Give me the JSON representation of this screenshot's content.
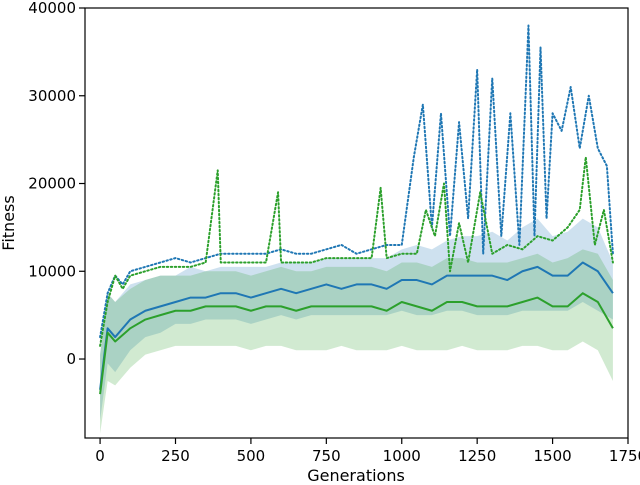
{
  "chart_data": {
    "type": "line",
    "title": "",
    "xlabel": "Generations",
    "ylabel": "Fitness",
    "xlim": [
      -50,
      1750
    ],
    "ylim": [
      -9000,
      40000
    ],
    "xticks": [
      0,
      250,
      500,
      750,
      1000,
      1250,
      1500,
      1750
    ],
    "yticks": [
      0,
      10000,
      20000,
      30000,
      40000
    ],
    "xtick_labels": [
      "0",
      "250",
      "500",
      "750",
      "1000",
      "1250",
      "1500",
      "1750"
    ],
    "ytick_labels": [
      "0",
      "10000",
      "20000",
      "30000",
      "40000"
    ],
    "grid": false,
    "legend": "none",
    "series": [
      {
        "color": "#1f77b4",
        "style": "solid-mean-with-band",
        "x": [
          0,
          25,
          50,
          100,
          150,
          200,
          250,
          300,
          350,
          400,
          450,
          500,
          550,
          600,
          650,
          700,
          750,
          800,
          850,
          900,
          950,
          1000,
          1050,
          1100,
          1150,
          1200,
          1250,
          1300,
          1350,
          1400,
          1450,
          1500,
          1550,
          1600,
          1650,
          1700
        ],
        "y": [
          -3500,
          3500,
          2500,
          4500,
          5500,
          6000,
          6500,
          7000,
          7000,
          7500,
          7500,
          7000,
          7500,
          8000,
          7500,
          8000,
          8500,
          8000,
          8500,
          8500,
          8000,
          9000,
          9000,
          8500,
          9500,
          9500,
          9500,
          9500,
          9000,
          10000,
          10500,
          9500,
          9500,
          11000,
          10000,
          7500
        ],
        "lower": [
          -7000,
          -500,
          -1500,
          1000,
          2500,
          3000,
          4000,
          4000,
          4500,
          4500,
          4500,
          4000,
          4500,
          5000,
          4500,
          5000,
          5000,
          5000,
          5000,
          5000,
          5000,
          5500,
          5000,
          5000,
          5500,
          5500,
          5000,
          5000,
          5000,
          5500,
          5500,
          5500,
          5500,
          6500,
          5500,
          4500
        ],
        "upper": [
          500,
          7500,
          6500,
          8500,
          9000,
          9500,
          9500,
          10500,
          10000,
          10500,
          10500,
          10500,
          10500,
          11000,
          11000,
          11000,
          11500,
          11500,
          11500,
          11500,
          11500,
          12500,
          13000,
          12500,
          13500,
          14000,
          14000,
          14500,
          13500,
          15000,
          16000,
          14000,
          14500,
          16000,
          15000,
          11000
        ]
      },
      {
        "color": "#1f77b4",
        "style": "dotted-max",
        "x": [
          0,
          25,
          50,
          75,
          100,
          150,
          200,
          250,
          300,
          350,
          400,
          450,
          500,
          550,
          600,
          650,
          700,
          750,
          800,
          850,
          900,
          950,
          1000,
          1040,
          1070,
          1100,
          1130,
          1160,
          1190,
          1220,
          1250,
          1270,
          1300,
          1330,
          1360,
          1390,
          1420,
          1440,
          1460,
          1480,
          1500,
          1530,
          1560,
          1590,
          1620,
          1650,
          1680,
          1700
        ],
        "y": [
          2500,
          7500,
          9500,
          8500,
          10000,
          10500,
          11000,
          11500,
          11000,
          11500,
          12000,
          12000,
          12000,
          12000,
          12500,
          12000,
          12000,
          12500,
          13000,
          12000,
          12500,
          13000,
          13000,
          23000,
          29000,
          15000,
          28000,
          14000,
          27000,
          16000,
          33000,
          12000,
          32000,
          14000,
          28000,
          13000,
          38000,
          14000,
          35500,
          16000,
          28000,
          26000,
          31000,
          24000,
          30000,
          24000,
          22000,
          12000
        ]
      },
      {
        "color": "#2ca02c",
        "style": "solid-mean-with-band",
        "x": [
          0,
          25,
          50,
          100,
          150,
          200,
          250,
          300,
          350,
          400,
          450,
          500,
          550,
          600,
          650,
          700,
          750,
          800,
          850,
          900,
          950,
          1000,
          1050,
          1100,
          1150,
          1200,
          1250,
          1300,
          1350,
          1400,
          1450,
          1500,
          1550,
          1600,
          1650,
          1700
        ],
        "y": [
          -4000,
          3000,
          2000,
          3500,
          4500,
          5000,
          5500,
          5500,
          6000,
          6000,
          6000,
          5500,
          6000,
          6000,
          5500,
          6000,
          6000,
          6000,
          6000,
          6000,
          5500,
          6500,
          6000,
          5500,
          6500,
          6500,
          6000,
          6000,
          6000,
          6500,
          7000,
          6000,
          6000,
          7500,
          6500,
          3500
        ],
        "lower": [
          -8500,
          -2500,
          -3000,
          -1000,
          500,
          1000,
          1500,
          1500,
          1500,
          1500,
          1500,
          1000,
          1500,
          1500,
          1000,
          1000,
          1000,
          1500,
          1000,
          1000,
          1000,
          1500,
          1000,
          1000,
          1000,
          1500,
          1000,
          1000,
          1000,
          1500,
          1500,
          1000,
          1000,
          2000,
          1000,
          -2500
        ],
        "upper": [
          500,
          7500,
          6500,
          8000,
          9000,
          9500,
          9500,
          9500,
          10000,
          10000,
          10000,
          9500,
          10000,
          10500,
          10000,
          10000,
          10500,
          10500,
          10500,
          10500,
          10000,
          11000,
          11000,
          10500,
          11500,
          11500,
          11000,
          11000,
          11000,
          11500,
          12000,
          11000,
          11500,
          12500,
          12000,
          9000
        ]
      },
      {
        "color": "#2ca02c",
        "style": "dotted-max",
        "x": [
          0,
          25,
          50,
          75,
          100,
          150,
          200,
          250,
          300,
          350,
          390,
          400,
          450,
          500,
          550,
          590,
          600,
          650,
          700,
          750,
          800,
          850,
          900,
          930,
          950,
          1000,
          1050,
          1080,
          1110,
          1140,
          1160,
          1190,
          1220,
          1260,
          1300,
          1350,
          1400,
          1450,
          1500,
          1550,
          1590,
          1610,
          1640,
          1670,
          1700
        ],
        "y": [
          1500,
          6500,
          9500,
          8000,
          9500,
          10000,
          10500,
          10500,
          10500,
          11000,
          21500,
          11000,
          11000,
          11000,
          11000,
          19000,
          11000,
          11000,
          11000,
          11500,
          11500,
          11500,
          11500,
          19500,
          11500,
          12000,
          12000,
          17000,
          14000,
          20000,
          10000,
          15500,
          11000,
          19000,
          12000,
          13000,
          12500,
          14000,
          13500,
          15000,
          17000,
          23000,
          13000,
          17000,
          11000
        ]
      }
    ]
  }
}
